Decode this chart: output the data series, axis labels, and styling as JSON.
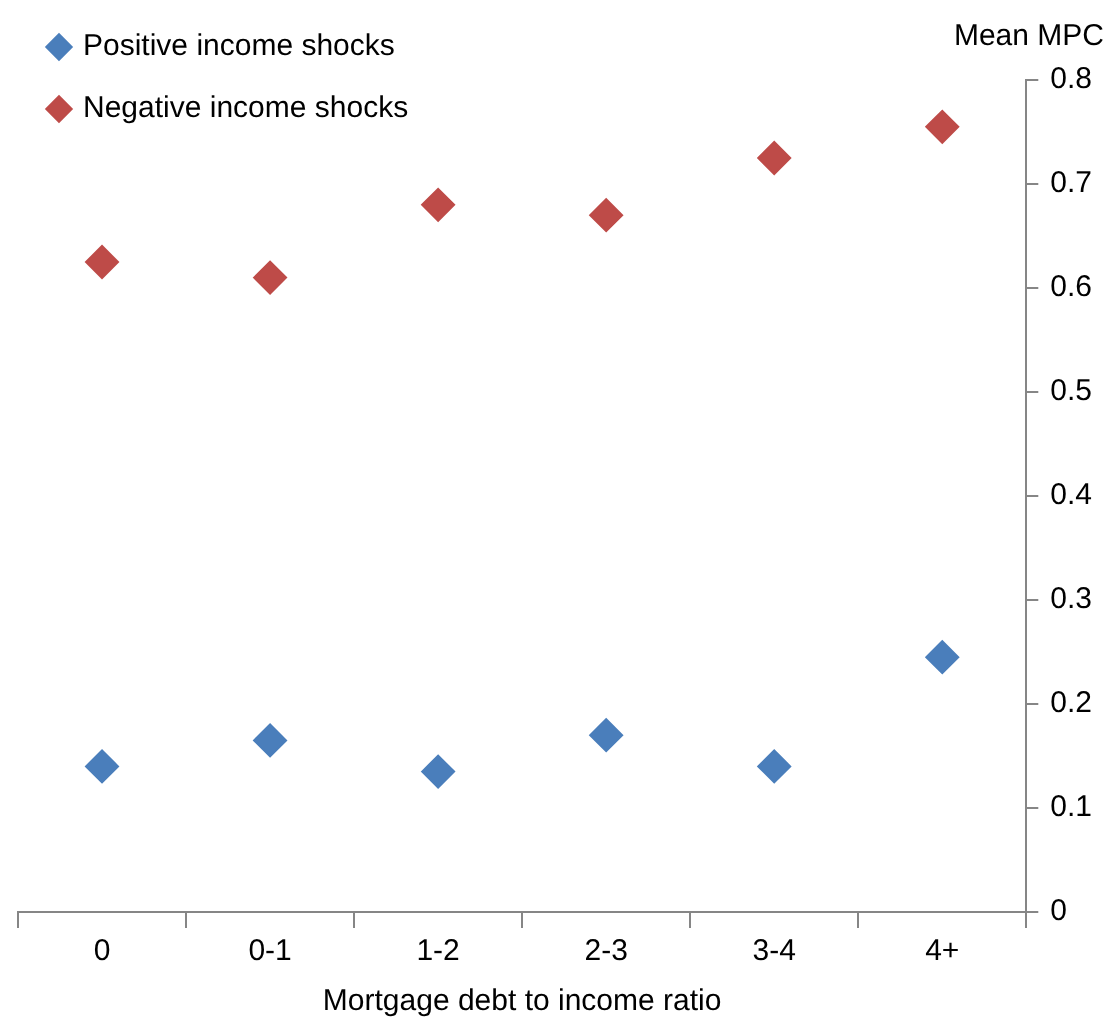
{
  "chart_data": {
    "type": "scatter",
    "xlabel": "Mortgage debt to income ratio",
    "ylabel": "Mean MPC",
    "categories": [
      "0",
      "0-1",
      "1-2",
      "2-3",
      "3-4",
      "4+"
    ],
    "series": [
      {
        "name": "Positive income shocks",
        "color": "#4a7ebb",
        "values": [
          0.14,
          0.165,
          0.135,
          0.17,
          0.14,
          0.245
        ]
      },
      {
        "name": "Negative income shocks",
        "color": "#be4b48",
        "values": [
          0.625,
          0.61,
          0.68,
          0.67,
          0.725,
          0.755
        ]
      }
    ],
    "ylim": [
      0,
      0.8
    ],
    "yticks": [
      0,
      0.1,
      0.2,
      0.3,
      0.4,
      0.5,
      0.6,
      0.7,
      0.8
    ],
    "grid": false,
    "legend": "top left",
    "marker": "diamond"
  }
}
